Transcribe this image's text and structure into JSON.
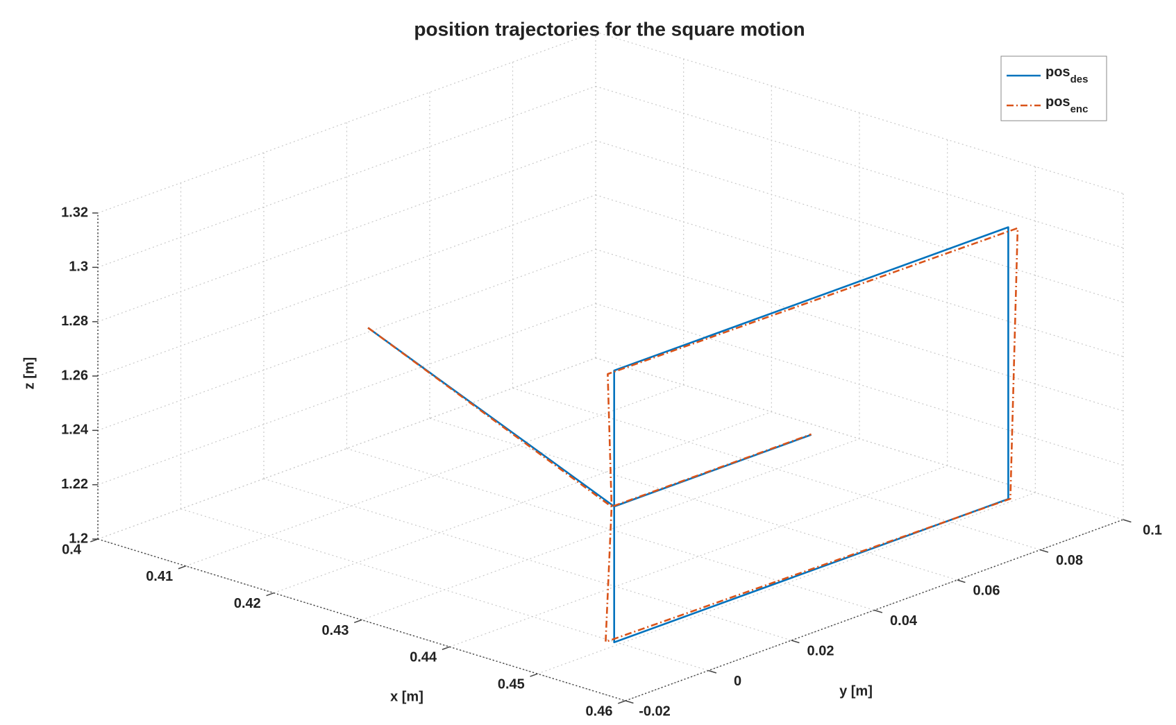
{
  "chart_data": {
    "type": "line3d",
    "title": "position trajectories for the square motion",
    "xlabel": "x [m]",
    "ylabel": "y [m]",
    "zlabel": "z [m]",
    "xlim": [
      0.4,
      0.46
    ],
    "xticks": [
      0.4,
      0.41,
      0.42,
      0.43,
      0.44,
      0.45,
      0.46
    ],
    "ylim": [
      -0.02,
      0.1
    ],
    "yticks": [
      -0.02,
      0,
      0.02,
      0.04,
      0.06,
      0.08,
      0.1
    ],
    "zlim": [
      1.2,
      1.32
    ],
    "zticks": [
      1.2,
      1.22,
      1.24,
      1.26,
      1.28,
      1.3,
      1.32
    ],
    "grid": true,
    "legend": "upper right",
    "series": [
      {
        "name": "pos_des",
        "color": "#0072bd",
        "style": "solid",
        "x": [
          0.426,
          0.454,
          0.454,
          0.454,
          0.454,
          0.454,
          0.454,
          0.454
        ],
        "y": [
          -0.01,
          -0.01,
          -0.01,
          0.085,
          0.085,
          -0.01,
          -0.01,
          0.0375
        ],
        "z": [
          1.298,
          1.26,
          1.21,
          1.21,
          1.31,
          1.31,
          1.26,
          1.26
        ]
      },
      {
        "name": "pos_enc",
        "color": "#d95319",
        "style": "dashdot",
        "x": [
          0.426,
          0.4538,
          0.4535,
          0.454,
          0.4545,
          0.4535,
          0.4538,
          0.454
        ],
        "y": [
          -0.01,
          -0.0102,
          -0.011,
          0.0855,
          0.0862,
          -0.0105,
          -0.0102,
          0.0375
        ],
        "z": [
          1.298,
          1.2598,
          1.2102,
          1.2098,
          1.3095,
          1.3085,
          1.2598,
          1.2602
        ]
      }
    ]
  }
}
